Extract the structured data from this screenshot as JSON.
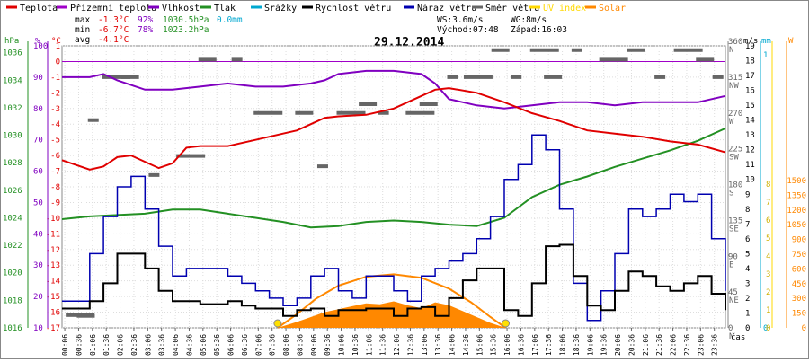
{
  "chart_data": {
    "type": "line",
    "title": "29.12.2014",
    "legend": [
      {
        "key": "temp",
        "label": "Teplota",
        "color": "#e00000"
      },
      {
        "key": "feels",
        "label": "Přízemní teplota",
        "color": "#a000c8"
      },
      {
        "key": "humidity",
        "label": "Vlhkost",
        "color": "#8000c0"
      },
      {
        "key": "pressure",
        "label": "Tlak",
        "color": "#239023"
      },
      {
        "key": "rain",
        "label": "Srážky",
        "color": "#00a8d0"
      },
      {
        "key": "wind",
        "label": "Rychlost větru",
        "color": "#000000"
      },
      {
        "key": "gust",
        "label": "Náraz větru",
        "color": "#0000b0"
      },
      {
        "key": "dir",
        "label": "Směr větru",
        "color": "#666666"
      },
      {
        "key": "uv",
        "label": "UV index",
        "color": "#ffd800"
      },
      {
        "key": "solar",
        "label": "Solar",
        "color": "#ff8800"
      }
    ],
    "stats": {
      "max": {
        "label": "max",
        "temp": "-1.3°C",
        "hum": "92%",
        "press": "1030.5hPa",
        "rain": "0.0mm"
      },
      "min": {
        "label": "min",
        "temp": "-6.7°C",
        "hum": "78%",
        "press": "1023.2hPa"
      },
      "avg": {
        "label": "avg",
        "temp": "-4.1°C"
      },
      "ws": "WS:3.6m/s",
      "wg": "WG:8m/s",
      "sunrise": "Východ:07:48",
      "sunset": "Západ:16:03"
    },
    "axis_units": {
      "hpa": "hPa",
      "pct": "%",
      "degc": "°C",
      "ms": "m/s",
      "mm": "mm",
      "w": "W",
      "time": "čas"
    },
    "ticks": {
      "hpa": [
        "1016",
        "1018",
        "1020",
        "1022",
        "1024",
        "1026",
        "1028",
        "1030",
        "1032",
        "1034",
        "1036"
      ],
      "pct": [
        "10",
        "20",
        "30",
        "40",
        "50",
        "60",
        "70",
        "80",
        "90",
        "100"
      ],
      "degc": [
        "-17",
        "-16",
        "-15",
        "-14",
        "-13",
        "-12",
        "-11",
        "-10",
        "-9",
        "-8",
        "-7",
        "-6",
        "-5",
        "-4",
        "-3",
        "-2",
        "-1",
        "0",
        "1"
      ],
      "dir": [
        "360 N",
        "315 NW",
        "270 W",
        "225 SW",
        "180 S",
        "135 SE",
        "90 E",
        "45 NE",
        "0 N"
      ],
      "ms": [
        "0",
        "1",
        "2",
        "3",
        "4",
        "5",
        "6",
        "7",
        "8",
        "9",
        "10",
        "11",
        "12",
        "13",
        "14",
        "15",
        "16",
        "17",
        "18",
        "19"
      ],
      "mm": [
        "0",
        "1"
      ],
      "w": [
        "0",
        "150",
        "300",
        "450",
        "600",
        "750",
        "900",
        "1050",
        "1200",
        "1350",
        "1500"
      ],
      "uv": [
        "0",
        "1",
        "2",
        "3",
        "4",
        "5",
        "6",
        "7",
        "8"
      ],
      "x": [
        "00:06",
        "00:36",
        "01:06",
        "01:36",
        "02:06",
        "02:36",
        "03:06",
        "03:36",
        "04:06",
        "04:36",
        "05:06",
        "05:36",
        "06:06",
        "06:36",
        "07:06",
        "07:36",
        "08:06",
        "08:36",
        "09:06",
        "09:36",
        "10:06",
        "10:36",
        "11:06",
        "11:36",
        "12:06",
        "12:36",
        "13:06",
        "13:36",
        "14:06",
        "14:36",
        "15:06",
        "15:36",
        "16:06",
        "16:36",
        "17:06",
        "17:36",
        "18:06",
        "18:36",
        "19:06",
        "19:36",
        "20:06",
        "20:36",
        "21:06",
        "21:36",
        "22:06",
        "22:36",
        "23:06",
        "23:36"
      ]
    },
    "ranges": {
      "hours": [
        0,
        24
      ],
      "temp_c": [
        -17,
        1
      ],
      "humidity_pct": [
        10,
        100
      ],
      "pressure_hpa": [
        1016,
        1036.5
      ],
      "wind_ms": [
        0,
        19
      ],
      "dir_deg": [
        0,
        360
      ],
      "solar_w": [
        0,
        1500
      ]
    },
    "series": {
      "temp": {
        "t": [
          0,
          1,
          1.5,
          2,
          2.5,
          3,
          3.5,
          4,
          4.5,
          5,
          6,
          7,
          8,
          8.5,
          9,
          9.5,
          10,
          11,
          12,
          13,
          13.5,
          14,
          15,
          16,
          17,
          18,
          19,
          20,
          21,
          22,
          23,
          24
        ],
        "v": [
          -6.3,
          -6.9,
          -6.7,
          -6.1,
          -6.0,
          -6.4,
          -6.8,
          -6.5,
          -5.5,
          -5.4,
          -5.4,
          -5.0,
          -4.6,
          -4.4,
          -4.0,
          -3.6,
          -3.5,
          -3.4,
          -3.0,
          -2.2,
          -1.8,
          -1.7,
          -2.0,
          -2.6,
          -3.3,
          -3.8,
          -4.4,
          -4.6,
          -4.8,
          -5.1,
          -5.3,
          -5.8
        ]
      },
      "humidity": {
        "t": [
          0,
          1,
          1.5,
          2,
          3,
          4,
          5,
          6,
          7,
          8,
          9,
          9.5,
          10,
          11,
          12,
          13,
          13.5,
          14,
          15,
          16,
          17,
          18,
          19,
          20,
          21,
          22,
          23,
          24
        ],
        "v": [
          90,
          90,
          91,
          89,
          86,
          86,
          87,
          88,
          87,
          87,
          88,
          89,
          91,
          92,
          92,
          91,
          88,
          83,
          81,
          80,
          81,
          82,
          82,
          81,
          82,
          82,
          82,
          84
        ]
      },
      "pressure": {
        "t": [
          0,
          1,
          2,
          3,
          4,
          5,
          6,
          7,
          8,
          9,
          10,
          11,
          12,
          13,
          14,
          15,
          16,
          17,
          18,
          19,
          20,
          21,
          22,
          23,
          24
        ],
        "v": [
          1023.9,
          1024.1,
          1024.2,
          1024.3,
          1024.6,
          1024.6,
          1024.3,
          1024.0,
          1023.7,
          1023.3,
          1023.4,
          1023.7,
          1023.8,
          1023.7,
          1023.5,
          1023.4,
          1024.0,
          1025.5,
          1026.4,
          1027.0,
          1027.7,
          1028.3,
          1028.9,
          1029.6,
          1030.5
        ]
      },
      "wind": {
        "t": [
          0,
          1,
          1.5,
          2,
          2.5,
          3,
          3.5,
          4,
          5,
          6,
          6.5,
          7,
          8,
          8.5,
          9,
          9.5,
          10,
          11,
          12,
          12.5,
          13,
          13.5,
          14,
          14.5,
          15,
          16,
          16.5,
          17,
          17.5,
          18,
          18.5,
          19,
          19.5,
          20,
          20.5,
          21,
          21.5,
          22,
          22.5,
          23,
          23.5,
          24
        ],
        "v": [
          1.3,
          1.8,
          3,
          5,
          5,
          4,
          2.5,
          1.8,
          1.6,
          1.8,
          1.5,
          1.3,
          0.8,
          1.2,
          1.3,
          0.8,
          1.2,
          1.3,
          0.8,
          1.3,
          1.4,
          0.8,
          2,
          3.2,
          4,
          1.2,
          0.8,
          3,
          5.5,
          5.6,
          3.5,
          1.5,
          1.2,
          2.5,
          3.8,
          3.5,
          2.8,
          2.5,
          3,
          3.5,
          2.3,
          1.2
        ]
      },
      "gust": {
        "t": [
          0,
          1,
          1.5,
          2,
          2.5,
          3,
          3.5,
          4,
          4.5,
          5,
          6,
          6.5,
          7,
          7.5,
          8,
          8.5,
          9,
          9.5,
          10,
          10.5,
          11,
          12,
          12.5,
          13,
          13.5,
          14,
          14.5,
          15,
          15.5,
          16,
          16.5,
          17,
          17.5,
          18,
          18.5,
          19,
          19.5,
          20,
          20.5,
          21,
          21.5,
          22,
          22.5,
          23,
          23.5,
          24
        ],
        "v": [
          1.8,
          5,
          7.5,
          9.5,
          10.2,
          8,
          5.5,
          3.5,
          4,
          4,
          3.5,
          3,
          2.5,
          2,
          1.5,
          2,
          3.5,
          4,
          2.5,
          2,
          3.5,
          2.5,
          1.8,
          3.5,
          4,
          4.5,
          5,
          6,
          7.5,
          10,
          11,
          13,
          12,
          8,
          3,
          0.5,
          2.5,
          5,
          8,
          7.5,
          8,
          9,
          8.5,
          9,
          6,
          2.5
        ]
      },
      "solar": {
        "t": [
          7.8,
          8.5,
          9,
          9.5,
          10,
          10.5,
          11,
          11.5,
          12,
          12.5,
          13,
          13.5,
          14,
          14.5,
          15,
          15.5,
          16.05
        ],
        "v": [
          0,
          60,
          110,
          160,
          190,
          220,
          250,
          240,
          270,
          230,
          200,
          260,
          230,
          170,
          110,
          50,
          0
        ]
      },
      "solar_theory": {
        "t": [
          7.8,
          8.5,
          9.2,
          10,
          11,
          12,
          13,
          14,
          14.8,
          15.5,
          16.05
        ],
        "v": [
          0,
          140,
          300,
          430,
          520,
          545,
          510,
          400,
          260,
          110,
          0
        ]
      },
      "direction": {
        "t": [
          0.2,
          0.6,
          1.0,
          1.5,
          2.2,
          3.2,
          4.2,
          5.0,
          6.2,
          7.0,
          8.5,
          9.3,
          10.0,
          10.8,
          11.5,
          12.5,
          13.0,
          14.0,
          14.6,
          15.6,
          16.3,
          17.0,
          17.5,
          18.5,
          19.5,
          20.5,
          21.5,
          22.2,
          23.0,
          23.6
        ],
        "v": [
          16,
          15,
          261,
          315,
          315,
          192,
          216,
          337,
          337,
          270,
          270,
          203,
          270,
          281,
          270,
          270,
          281,
          315,
          315,
          349,
          315,
          349,
          315,
          349,
          337,
          349,
          315,
          349,
          337,
          315
        ]
      }
    }
  }
}
